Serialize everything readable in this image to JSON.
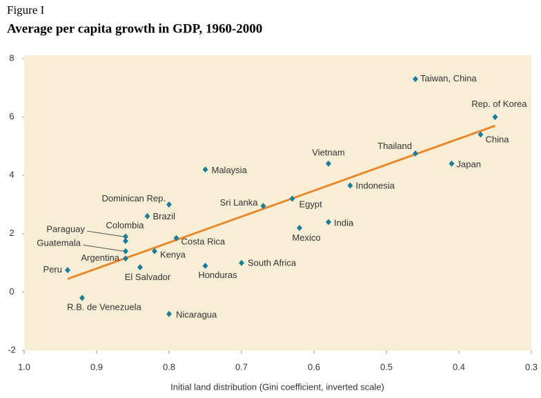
{
  "chart_data": {
    "type": "scatter",
    "figure_label": "Figure I",
    "title": "Average per capita growth in GDP, 1960-2000",
    "x_label": "Initial land distribution (Gini coefficient, inverted scale)",
    "xlim": [
      1.0,
      0.3
    ],
    "xticks": [
      {
        "value": 1.0,
        "label": "1.0"
      },
      0.9,
      0.8,
      0.7,
      0.6,
      0.5,
      0.4,
      0.3
    ],
    "ylim": [
      -2,
      8
    ],
    "yticks": [
      -2,
      0,
      2,
      4,
      6,
      8
    ],
    "x_inverted": true,
    "point_color": "#1b7d9c",
    "background": "#f8eed6",
    "series": [
      {
        "labels": [
          "Taiwan, China",
          "Rep. of Korea",
          "China",
          "Thailand",
          "Japan",
          "Vietnam",
          "Indonesia",
          "Malaysia",
          "Egypt",
          "Sri Lanka",
          "Dominican Rep.",
          "Brazil",
          "India",
          "Mexico",
          "Paraguay",
          "Colombia",
          "Guatemala",
          "Argentina",
          "Costa Rica",
          "Kenya",
          "El Salvador",
          "Honduras",
          "South Africa",
          "Peru",
          "R.B. de Venezuela",
          "Nicaragua"
        ],
        "x": [
          0.46,
          0.35,
          0.37,
          0.46,
          0.41,
          0.58,
          0.55,
          0.75,
          0.63,
          0.67,
          0.8,
          0.83,
          0.58,
          0.62,
          0.86,
          0.86,
          0.86,
          0.86,
          0.79,
          0.82,
          0.84,
          0.75,
          0.7,
          0.94,
          0.92,
          0.8
        ],
        "values": [
          7.3,
          6.0,
          5.4,
          4.75,
          4.4,
          4.4,
          3.65,
          4.2,
          3.2,
          2.95,
          3.0,
          2.6,
          2.4,
          2.2,
          1.9,
          1.75,
          1.4,
          1.15,
          1.85,
          1.4,
          0.85,
          0.9,
          1.0,
          0.75,
          -0.2,
          -0.75
        ]
      }
    ],
    "trend_line": {
      "color": "#e8892c",
      "x": [
        0.94,
        0.35
      ],
      "values": [
        0.45,
        5.7
      ]
    }
  }
}
